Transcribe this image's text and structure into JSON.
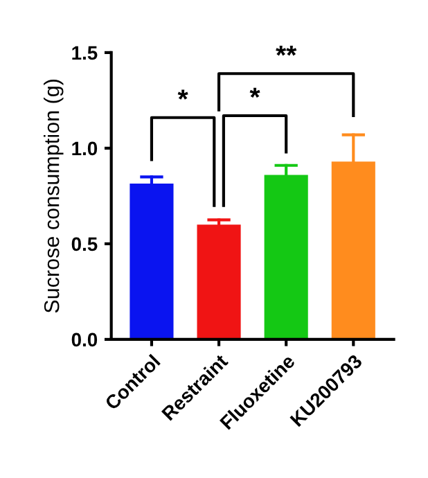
{
  "chart_data": {
    "type": "bar",
    "ylabel": "Sucrose consumption (g)",
    "categories": [
      "Control",
      "Restraint",
      "Fluoxetine",
      "KU200793"
    ],
    "values": [
      0.815,
      0.6,
      0.86,
      0.93
    ],
    "colors": [
      "#0a14f0",
      "#f01414",
      "#14c814",
      "#ff8c1e"
    ],
    "errors": [
      [
        0.815,
        0.85
      ],
      [
        0.6,
        0.625
      ],
      [
        0.86,
        0.91
      ],
      [
        0.93,
        1.07
      ]
    ],
    "ylim": [
      0,
      1.5
    ],
    "yticks": [
      {
        "value": 0,
        "label": "0.0"
      },
      {
        "value": 0.5,
        "label": "0.5"
      },
      {
        "value": 1,
        "label": "1.0"
      },
      {
        "value": 1.5,
        "label": "1.5"
      }
    ],
    "grid": false,
    "legend": false,
    "annotations": [
      "*",
      "*",
      "**"
    ]
  }
}
